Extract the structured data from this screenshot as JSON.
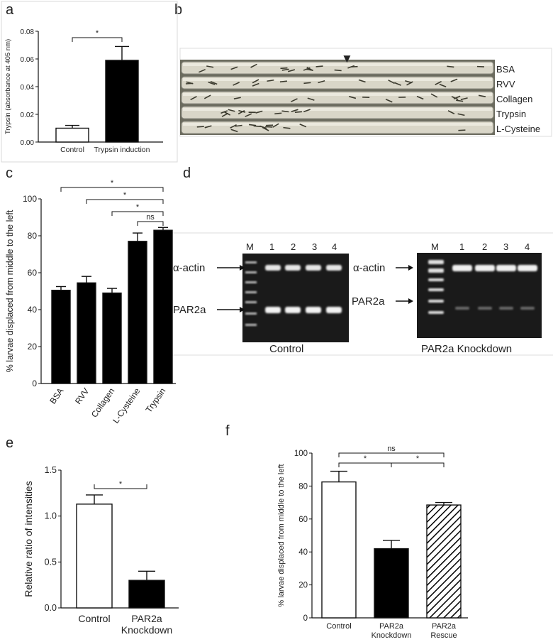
{
  "panels": {
    "a": "a",
    "b": "b",
    "c": "c",
    "d": "d",
    "e": "e",
    "f": "f"
  },
  "panel_b": {
    "rows": [
      "BSA",
      "RVV",
      "Collagen",
      "Trypsin",
      "L-Cysteine"
    ],
    "marker": "▼"
  },
  "panel_d": {
    "left_gel": {
      "lanes": [
        "M",
        "1",
        "2",
        "3",
        "4"
      ],
      "band_top": "α-actin",
      "band_bottom": "PAR2a",
      "caption": "Control"
    },
    "right_gel": {
      "lanes": [
        "M",
        "1",
        "2",
        "3",
        "4"
      ],
      "band_top": "α-actin",
      "band_bottom": "PAR2a",
      "caption": "PAR2a Knockdown"
    }
  },
  "chart_data": [
    {
      "panel": "a",
      "type": "bar",
      "ylabel": "Trypsin (absorbance at 405 nm)",
      "ylim": [
        0,
        0.08
      ],
      "yticks": [
        "0.00",
        "0.02",
        "0.04",
        "0.06",
        "0.08"
      ],
      "categories": [
        "Control",
        "Trypsin induction"
      ],
      "values": [
        0.01,
        0.059
      ],
      "errors": [
        0.002,
        0.01
      ],
      "fills": [
        "#ffffff",
        "#000000"
      ],
      "significance": [
        {
          "from": 0,
          "to": 1,
          "label": "*"
        }
      ]
    },
    {
      "panel": "c",
      "type": "bar",
      "ylabel": "% larvae displaced from middle to the left",
      "ylim": [
        0,
        100
      ],
      "yticks": [
        "0",
        "20",
        "40",
        "60",
        "80",
        "100"
      ],
      "categories": [
        "BSA",
        "RVV",
        "Collagen",
        "L-Cysteine",
        "Trypsin"
      ],
      "values": [
        50.5,
        54.5,
        49,
        77,
        83
      ],
      "errors": [
        2,
        3.5,
        2.5,
        4.5,
        1.5
      ],
      "fills": [
        "#000000",
        "#000000",
        "#000000",
        "#000000",
        "#000000"
      ],
      "significance": [
        {
          "from": 0,
          "to": 4,
          "label": "*"
        },
        {
          "from": 1,
          "to": 4,
          "label": "*"
        },
        {
          "from": 2,
          "to": 4,
          "label": "*"
        },
        {
          "from": 3,
          "to": 4,
          "label": "ns"
        }
      ]
    },
    {
      "panel": "e",
      "type": "bar",
      "ylabel": "Relative ratio of intensities",
      "ylim": [
        0,
        1.5
      ],
      "yticks": [
        "0.0",
        "0.5",
        "1.0",
        "1.5"
      ],
      "categories": [
        "Control",
        "PAR2a Knockdown"
      ],
      "values": [
        1.13,
        0.3
      ],
      "errors": [
        0.1,
        0.1
      ],
      "fills": [
        "#ffffff",
        "#000000"
      ],
      "significance": [
        {
          "from": 0,
          "to": 1,
          "label": "*"
        }
      ]
    },
    {
      "panel": "f",
      "type": "bar",
      "ylabel": "% larvae displaced from middle to the left",
      "ylim": [
        0,
        100
      ],
      "yticks": [
        "0",
        "20",
        "40",
        "60",
        "80",
        "100"
      ],
      "categories": [
        "Control",
        "PAR2a Knockdown",
        "PAR2a Rescue"
      ],
      "values": [
        82.5,
        42,
        68.5
      ],
      "errors": [
        6.5,
        5,
        1.5
      ],
      "fills": [
        "#ffffff",
        "#000000",
        "hatch"
      ],
      "significance": [
        {
          "from": 0,
          "to": 2,
          "label": "ns"
        },
        {
          "from": 0,
          "to": 1,
          "label": "*"
        },
        {
          "from": 1,
          "to": 2,
          "label": "*"
        }
      ]
    }
  ]
}
